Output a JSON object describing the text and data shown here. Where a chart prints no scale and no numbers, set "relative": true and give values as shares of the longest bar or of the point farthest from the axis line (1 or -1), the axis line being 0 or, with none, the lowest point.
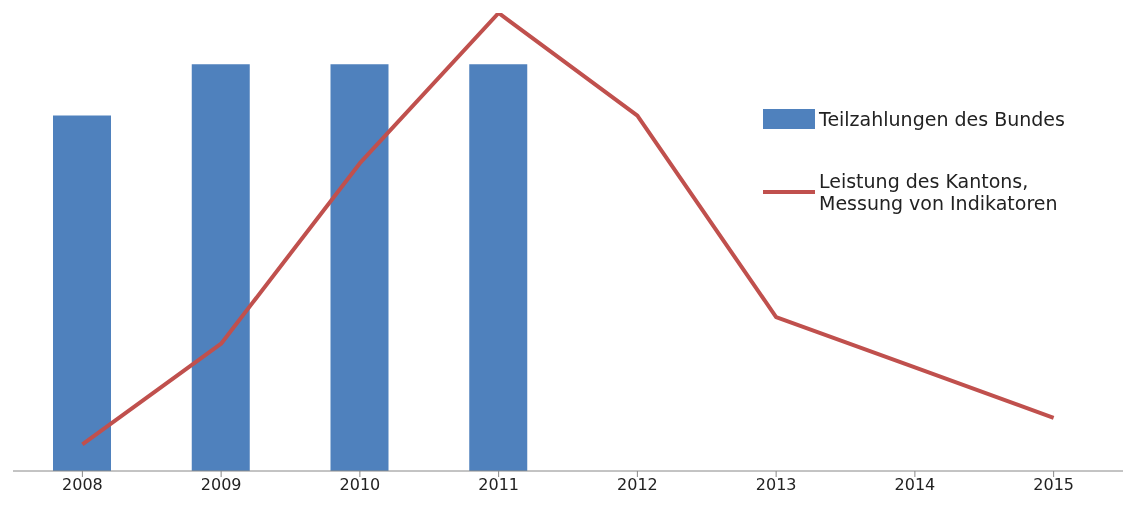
{
  "chart_data": {
    "type": "bar",
    "relative": true,
    "categories": [
      "2008",
      "2009",
      "2010",
      "2011",
      "2012",
      "2013",
      "2014",
      "2015"
    ],
    "series": [
      {
        "name": "Teilzahlungen des Bundes",
        "color": "#4f81bd",
        "values": [
          0.776,
          0.888,
          0.888,
          0.888,
          null,
          null,
          null,
          null
        ]
      },
      {
        "name": "Leistung des Kantons, Messung von Indikatoren",
        "type": "line",
        "color": "#c0504d",
        "values": [
          0.058,
          0.278,
          0.672,
          1,
          0.776,
          0.336,
          0.226,
          0.116
        ]
      }
    ],
    "legend": "right",
    "grid": false
  }
}
